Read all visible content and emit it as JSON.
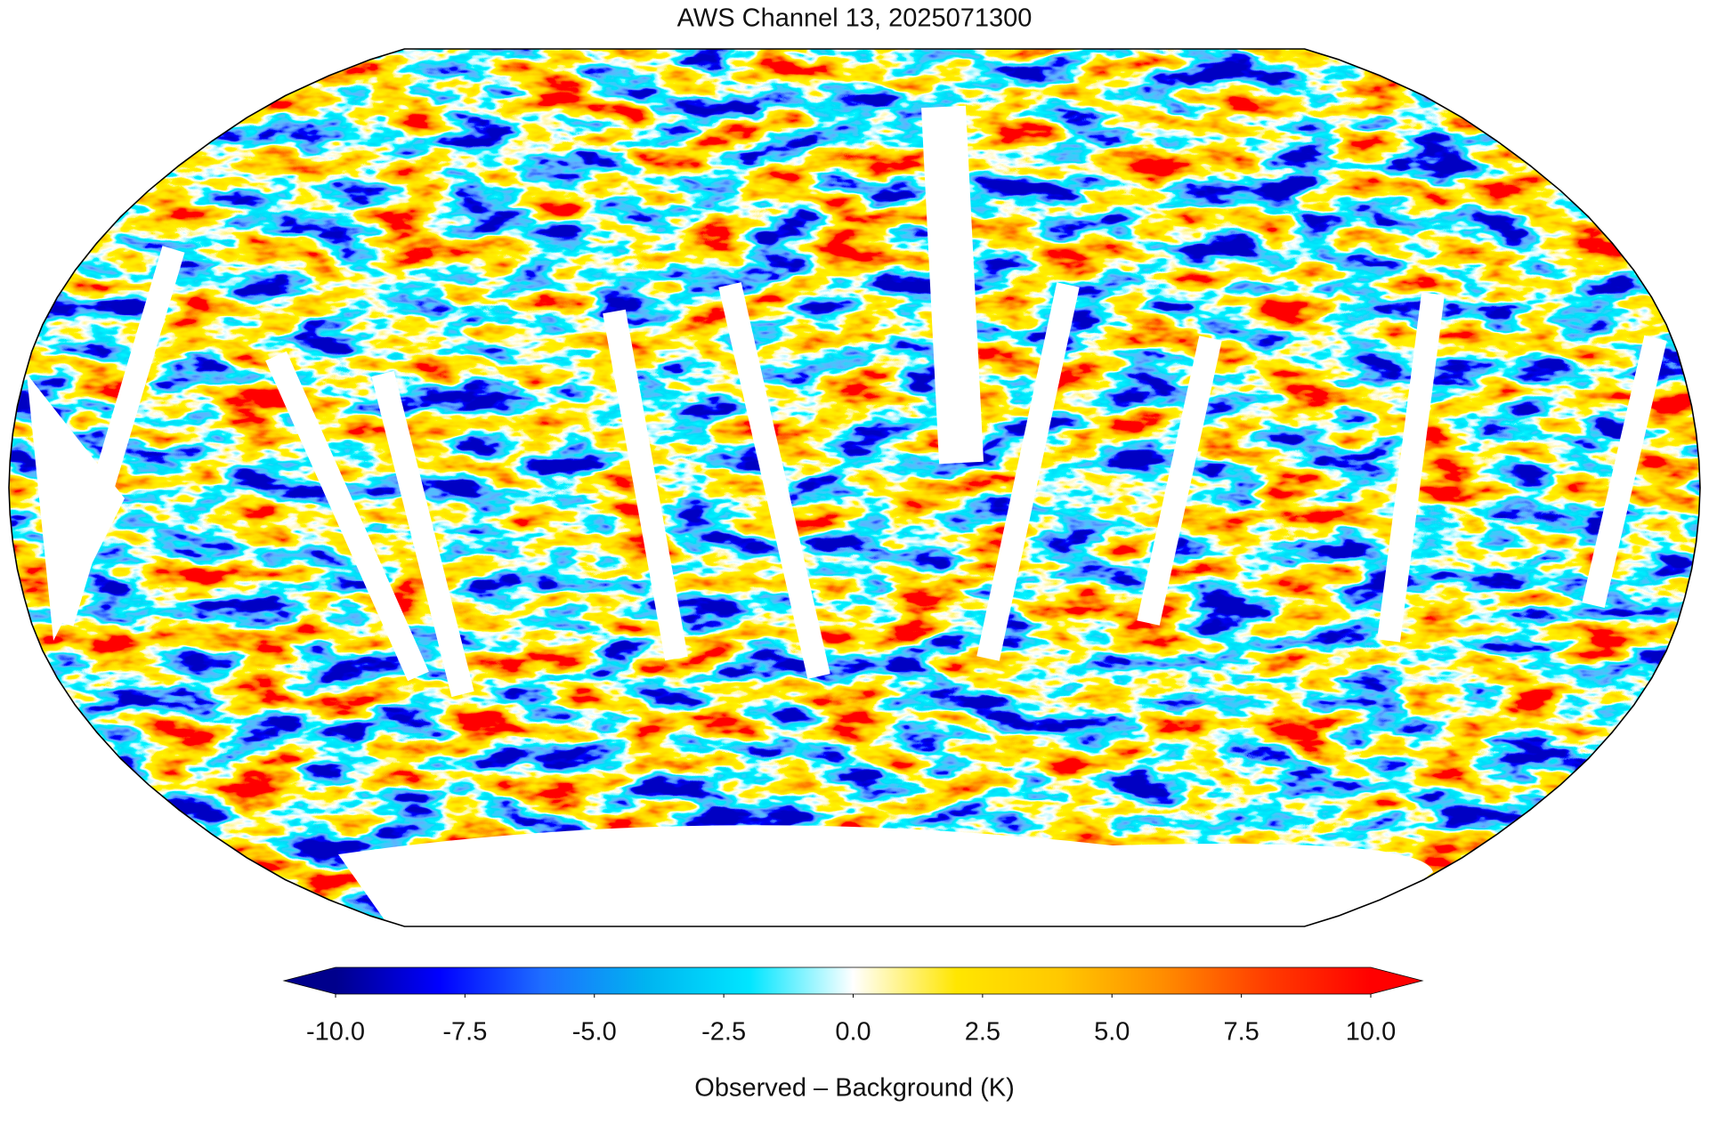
{
  "chart_data": {
    "type": "map",
    "title": "AWS Channel 13, 2025071300",
    "colorbar": {
      "label": "Observed – Background (K)",
      "clim": [
        -10,
        10
      ],
      "ticks": [
        {
          "value": -10,
          "label": "-10.0"
        },
        {
          "value": -7.5,
          "label": "-7.5"
        },
        {
          "value": -5,
          "label": "-5.0"
        },
        {
          "value": -2.5,
          "label": "-2.5"
        },
        {
          "value": 0,
          "label": "0.0"
        },
        {
          "value": 2.5,
          "label": "2.5"
        },
        {
          "value": 5,
          "label": "5.0"
        },
        {
          "value": 7.5,
          "label": "7.5"
        },
        {
          "value": 10,
          "label": "10.0"
        }
      ],
      "colormap": [
        "#00008c",
        "#0000ff",
        "#1e6eff",
        "#00b4f0",
        "#00e6ff",
        "#ffffff",
        "#ffe600",
        "#ffc800",
        "#ff8c00",
        "#ff3c00",
        "#ff0000"
      ],
      "extend": "both"
    }
  }
}
